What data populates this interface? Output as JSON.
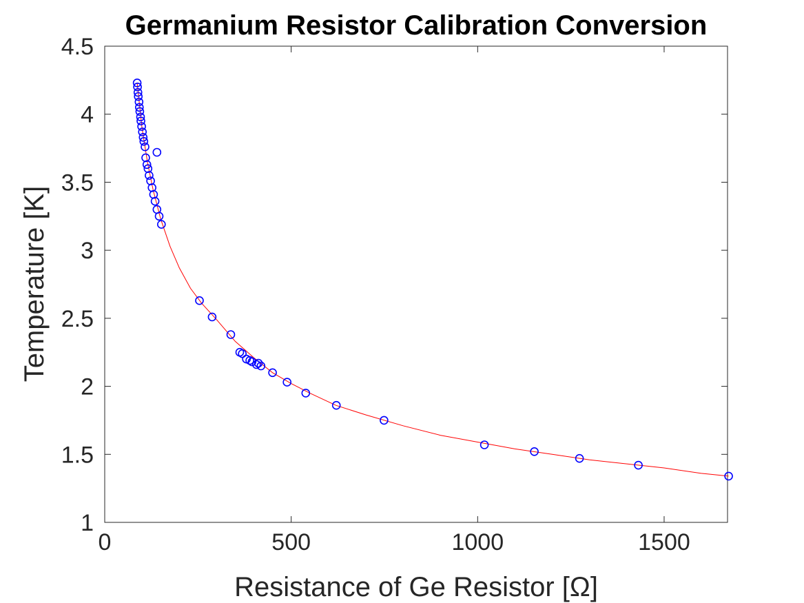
{
  "chart_data": {
    "type": "scatter",
    "title": "Germanium Resistor Calibration Conversion",
    "xlabel": "Resistance of Ge Resistor [Ω]",
    "ylabel": "Temperature [K]",
    "xlim": [
      0,
      1670
    ],
    "ylim": [
      1,
      4.5
    ],
    "xticks": [
      0,
      500,
      1000,
      1500
    ],
    "xtick_labels": [
      "0",
      "500",
      "1000",
      "1500"
    ],
    "yticks": [
      1,
      1.5,
      2,
      2.5,
      3,
      3.5,
      4,
      4.5
    ],
    "ytick_labels": [
      "1",
      "1.5",
      "2",
      "2.5",
      "3",
      "3.5",
      "4",
      "4.5"
    ],
    "grid": false,
    "series": [
      {
        "kind": "markers",
        "marker": "circle",
        "color": "#0000ff",
        "x": [
          87,
          88,
          89,
          90,
          92,
          93,
          94,
          96,
          97,
          99,
          101,
          103,
          105,
          108,
          110,
          113,
          116,
          119,
          123,
          127,
          131,
          135,
          140,
          146,
          152,
          140,
          254,
          288,
          338,
          362,
          369,
          380,
          389,
          395,
          407,
          412,
          419,
          450,
          489,
          539,
          621,
          749,
          1018,
          1152,
          1273,
          1431,
          1673
        ],
        "y": [
          4.23,
          4.2,
          4.16,
          4.13,
          4.09,
          4.05,
          4.02,
          3.98,
          3.95,
          3.91,
          3.87,
          3.83,
          3.8,
          3.76,
          3.68,
          3.63,
          3.6,
          3.55,
          3.51,
          3.46,
          3.41,
          3.36,
          3.3,
          3.25,
          3.19,
          3.72,
          2.63,
          2.51,
          2.38,
          2.25,
          2.24,
          2.2,
          2.19,
          2.18,
          2.16,
          2.17,
          2.15,
          2.1,
          2.03,
          1.95,
          1.86,
          1.75,
          1.57,
          1.52,
          1.47,
          1.42,
          1.34
        ]
      },
      {
        "kind": "fit-line",
        "color": "#ff0000",
        "x": [
          87,
          100,
          115,
          130,
          150,
          175,
          200,
          230,
          260,
          300,
          350,
          400,
          450,
          500,
          550,
          620,
          700,
          800,
          900,
          1000,
          1100,
          1200,
          1300,
          1400,
          1500,
          1600,
          1673
        ],
        "y": [
          4.23,
          3.9,
          3.64,
          3.44,
          3.23,
          3.03,
          2.87,
          2.72,
          2.61,
          2.49,
          2.33,
          2.21,
          2.1,
          2.02,
          1.95,
          1.86,
          1.79,
          1.71,
          1.64,
          1.59,
          1.54,
          1.5,
          1.46,
          1.43,
          1.4,
          1.36,
          1.34
        ]
      }
    ]
  }
}
